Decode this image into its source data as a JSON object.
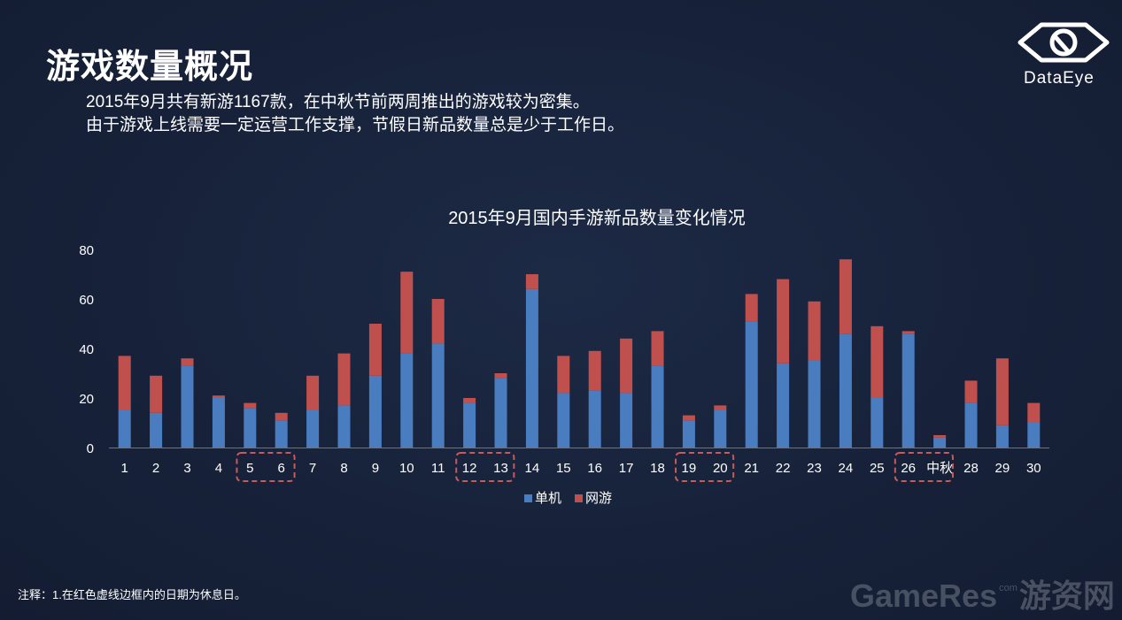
{
  "header": {
    "title": "游戏数量概况",
    "line1": "2015年9月共有新游1167款，在中秋节前两周推出的游戏较为密集。",
    "line2": "由于游戏上线需要一定运营工作支撑，节假日新品数量总是少于工作日。"
  },
  "logo": {
    "icon": "eye-logo-icon",
    "text": "DataEye"
  },
  "note": "注释：1.在红色虚线边框内的日期为休息日。",
  "watermark": {
    "main": "GameRes",
    "small": "com",
    "cn": "游资网"
  },
  "colors": {
    "single": "#4a7dc0",
    "online": "#c0504d",
    "holiday_box": "#c9595a"
  },
  "chart_data": {
    "type": "bar",
    "stacked": true,
    "title": "2015年9月国内手游新品数量变化情况",
    "categories": [
      "1",
      "2",
      "3",
      "4",
      "5",
      "6",
      "7",
      "8",
      "9",
      "10",
      "11",
      "12",
      "13",
      "14",
      "15",
      "16",
      "17",
      "18",
      "19",
      "20",
      "21",
      "22",
      "23",
      "24",
      "25",
      "26",
      "中秋",
      "28",
      "29",
      "30"
    ],
    "series": [
      {
        "name": "单机",
        "values": [
          15,
          14,
          33,
          20,
          16,
          11,
          15,
          17,
          29,
          38,
          42,
          18,
          28,
          64,
          22,
          23,
          22,
          33,
          11,
          15,
          51,
          34,
          35,
          46,
          20,
          46,
          4,
          18,
          9,
          10
        ]
      },
      {
        "name": "网游",
        "values": [
          22,
          15,
          3,
          1,
          2,
          3,
          14,
          21,
          21,
          33,
          18,
          2,
          2,
          6,
          15,
          16,
          22,
          14,
          2,
          2,
          11,
          34,
          24,
          30,
          29,
          1,
          1,
          9,
          27,
          8
        ]
      }
    ],
    "yticks": [
      "0",
      "20",
      "40",
      "60",
      "80"
    ],
    "ylim": [
      0,
      80
    ],
    "grid": false,
    "legend": "bottom",
    "holiday_groups": [
      [
        "5",
        "6"
      ],
      [
        "12",
        "13"
      ],
      [
        "19",
        "20"
      ],
      [
        "26",
        "中秋"
      ]
    ]
  }
}
